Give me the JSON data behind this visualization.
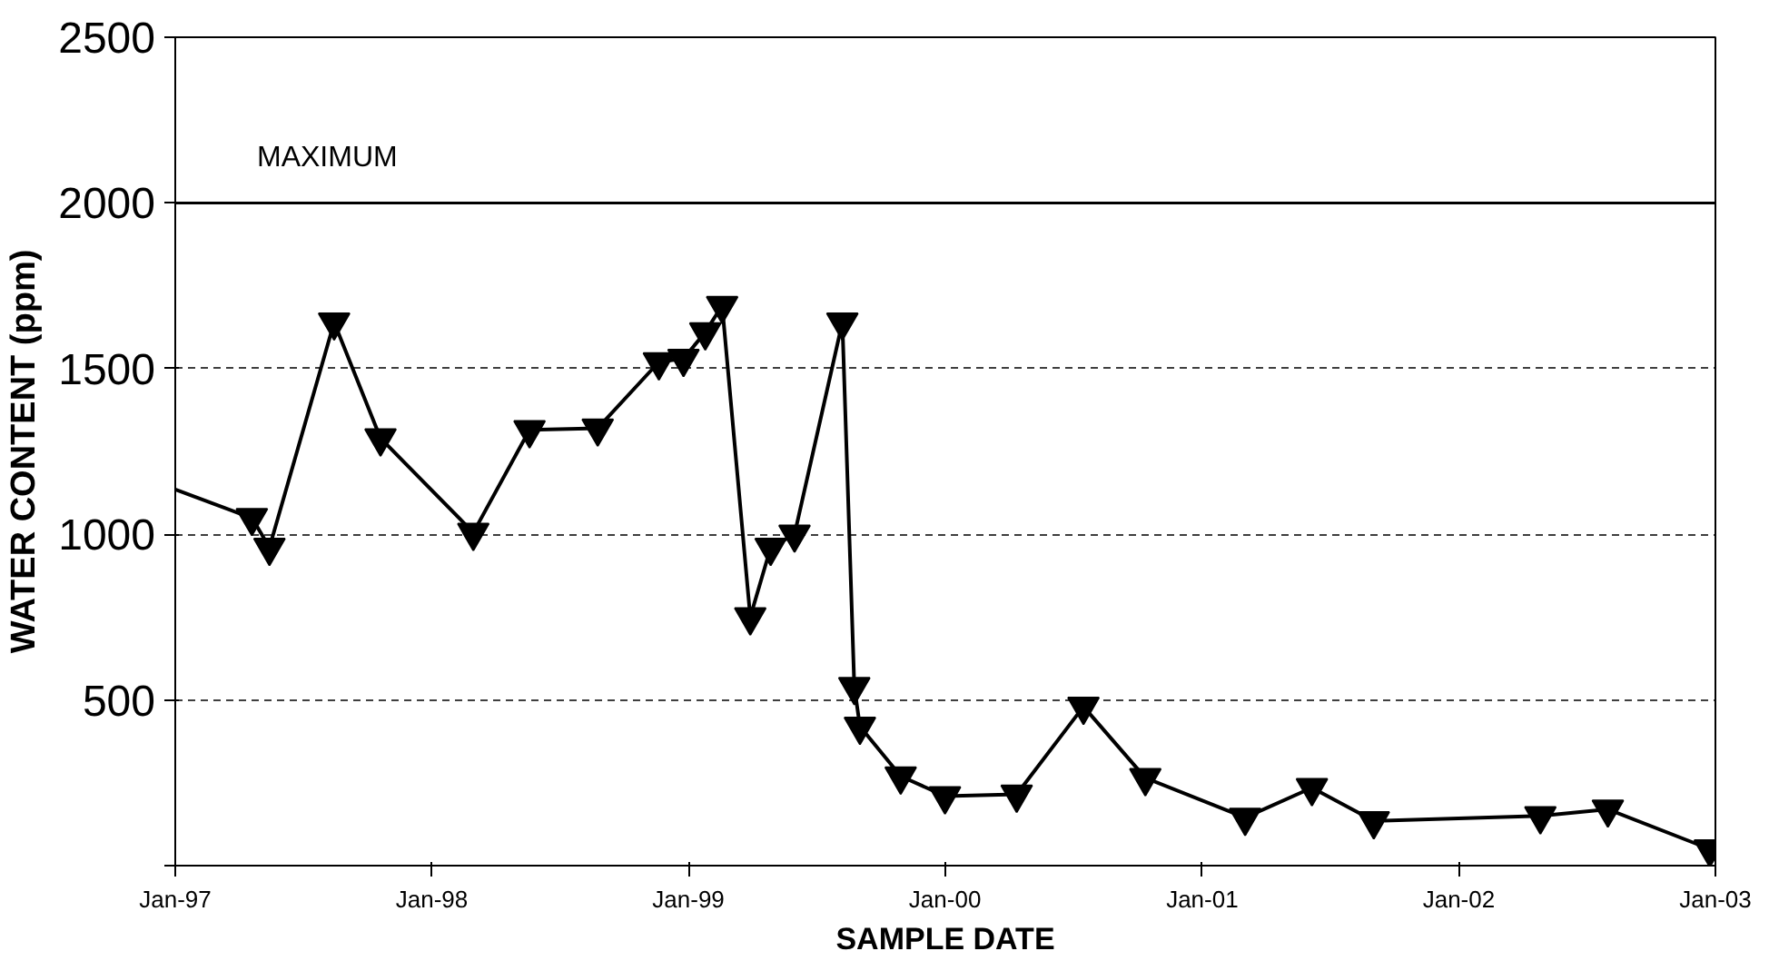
{
  "chart_data": {
    "type": "line",
    "xlabel": "SAMPLE DATE",
    "ylabel": "WATER CONTENT (ppm)",
    "xlim": [
      "1997-01-01",
      "2003-01-01"
    ],
    "xticks": [
      {
        "value": "1997-01-01",
        "label": "Jan-97"
      },
      {
        "value": "1998-01-01",
        "label": "Jan-98"
      },
      {
        "value": "1999-01-01",
        "label": "Jan-99"
      },
      {
        "value": "2000-01-01",
        "label": "Jan-00"
      },
      {
        "value": "2001-01-01",
        "label": "Jan-01"
      },
      {
        "value": "2002-01-01",
        "label": "Jan-02"
      },
      {
        "value": "2003-01-01",
        "label": "Jan-03"
      }
    ],
    "ylim": [
      0,
      2500
    ],
    "yticks": [
      {
        "value": 0,
        "label": null
      },
      500,
      1000,
      1500,
      2000,
      2500
    ],
    "grid": "y",
    "series": [
      {
        "color": "#000000",
        "x": [
          "1997-01-01",
          "1997-04-12"
        ],
        "values": [
          1135,
          1055
        ]
      },
      {
        "color": "#000000",
        "marker": "triangle",
        "x": [
          "1997-04-20",
          "1997-05-15",
          "1997-08-15",
          "1997-10-20",
          "1998-03-01",
          "1998-05-20",
          "1998-08-25",
          "1998-11-20",
          "1998-12-25",
          "1999-01-25",
          "1999-02-18",
          "1999-03-30",
          "1999-04-28",
          "1999-06-01",
          "1999-08-08",
          "1999-08-25",
          "1999-09-02",
          "1999-10-30",
          "2000-01-01",
          "2000-04-12",
          "2000-07-16",
          "2000-10-12",
          "2001-03-03",
          "2001-06-06",
          "2001-09-02",
          "2002-04-27",
          "2002-08-01",
          "2002-12-24"
        ],
        "values": [
          1050,
          960,
          1640,
          1290,
          1005,
          1315,
          1320,
          1520,
          1530,
          1610,
          1690,
          750,
          960,
          1000,
          1640,
          540,
          420,
          270,
          210,
          215,
          480,
          265,
          145,
          235,
          135,
          150,
          170,
          50
        ]
      }
    ],
    "ref_lines": [
      {
        "axis": "y",
        "value": 2000,
        "label": "MAXIMUM",
        "color": "#000000",
        "line_style": "solid"
      }
    ]
  }
}
